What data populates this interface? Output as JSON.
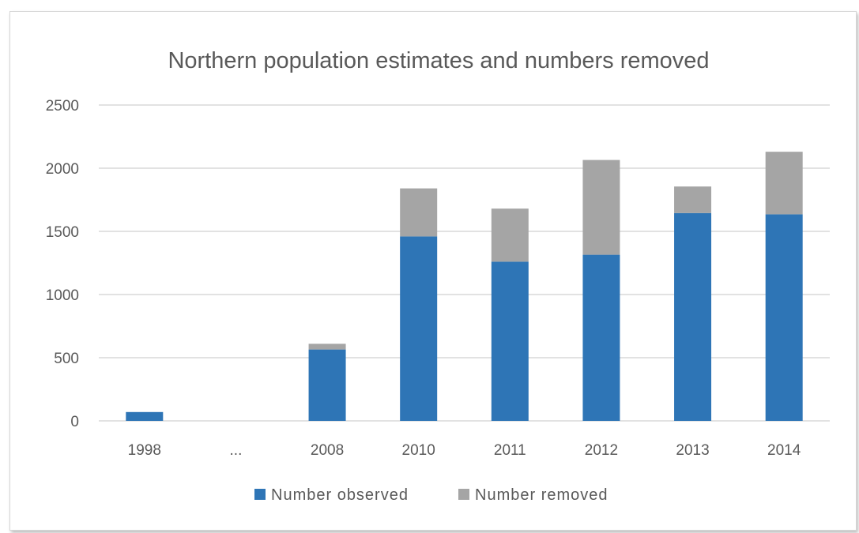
{
  "chart_data": {
    "type": "bar",
    "stacked": true,
    "title": "Northern population estimates and numbers removed",
    "categories": [
      "1998",
      "...",
      "2008",
      "2010",
      "2011",
      "2012",
      "2013",
      "2014"
    ],
    "series": [
      {
        "name": "Number observed",
        "color": "#2e75b6",
        "values": [
          70,
          0,
          565,
          1460,
          1260,
          1315,
          1645,
          1635
        ]
      },
      {
        "name": "Number removed",
        "color": "#a5a5a5",
        "values": [
          0,
          0,
          45,
          380,
          420,
          750,
          210,
          495
        ]
      }
    ],
    "ylim": [
      0,
      2500
    ],
    "yticks": [
      "0",
      "500",
      "1000",
      "1500",
      "2000",
      "2500"
    ],
    "grid": true,
    "legend_position": "bottom"
  }
}
